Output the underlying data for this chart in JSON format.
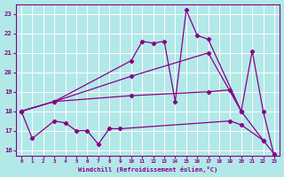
{
  "background_color": "#b3e8e8",
  "grid_color": "#ffffff",
  "line_color": "#880088",
  "xlabel": "Windchill (Refroidissement éolien,°C)",
  "xlim": [
    -0.5,
    23.5
  ],
  "ylim": [
    15.7,
    23.5
  ],
  "xticks": [
    0,
    1,
    2,
    3,
    4,
    5,
    6,
    7,
    8,
    9,
    10,
    11,
    12,
    13,
    14,
    15,
    16,
    17,
    18,
    19,
    20,
    21,
    22,
    23
  ],
  "yticks": [
    16,
    17,
    18,
    19,
    20,
    21,
    22,
    23
  ],
  "curve1_x": [
    0,
    3,
    10,
    11,
    12,
    13,
    14,
    15,
    16,
    17,
    20,
    21,
    22,
    23
  ],
  "curve1_y": [
    18.0,
    18.5,
    20.6,
    21.6,
    21.5,
    21.6,
    18.5,
    23.2,
    21.9,
    21.7,
    18.0,
    21.1,
    18.0,
    15.7
  ],
  "curve2_x": [
    0,
    3,
    10,
    17,
    20
  ],
  "curve2_y": [
    18.0,
    18.5,
    19.8,
    21.0,
    18.0
  ],
  "curve3_x": [
    0,
    3,
    10,
    17,
    19,
    20,
    22,
    23
  ],
  "curve3_y": [
    18.0,
    18.5,
    18.8,
    19.0,
    19.1,
    18.0,
    16.5,
    15.8
  ],
  "curve4_x": [
    0,
    1,
    3,
    4,
    5,
    6,
    7,
    8,
    9,
    19,
    20,
    22
  ],
  "curve4_y": [
    18.0,
    16.6,
    17.5,
    17.4,
    17.0,
    17.0,
    16.3,
    17.1,
    17.1,
    17.5,
    17.3,
    16.5
  ]
}
